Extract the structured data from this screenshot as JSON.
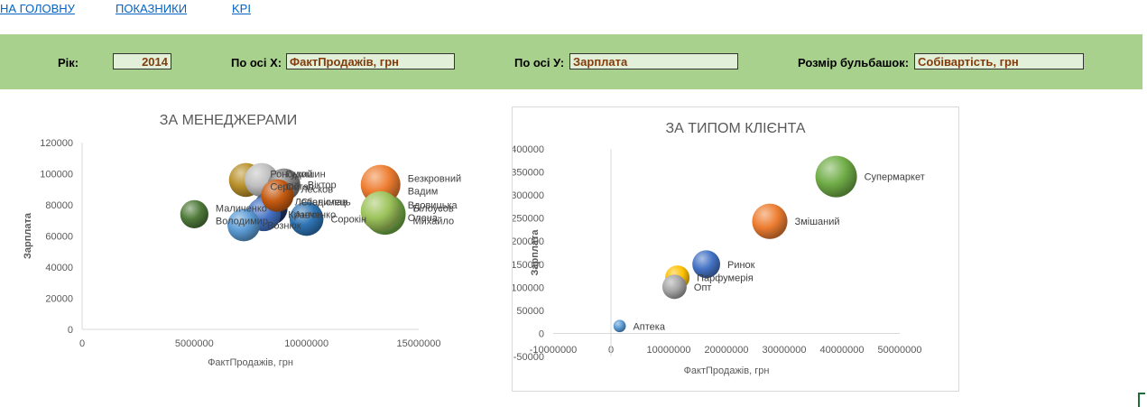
{
  "nav": {
    "home": "НА ГОЛОВНУ",
    "indicators": "ПОКАЗНИКИ",
    "kpi": "KPI"
  },
  "filters": {
    "year_label": "Рік:",
    "year_value": "2014",
    "x_label": "По осі Х:",
    "x_value": "ФактПродажів, грн",
    "y_label": "По осі У:",
    "y_value": "Зарплата",
    "size_label": "Розмір бульбашок:",
    "size_value": "Собівартість, грн"
  },
  "colors": {
    "band": "#a9d18e",
    "link": "#0563c1",
    "value_text": "#843c0c"
  },
  "chart_data": [
    {
      "type": "bubble",
      "title": "ЗА МЕНЕДЖЕРАМИ",
      "xlabel": "ФактПродажів, грн",
      "ylabel": "Зарплата",
      "xlim": [
        0,
        15000000
      ],
      "ylim": [
        0,
        120000
      ],
      "xticks": [
        "0",
        "5000000",
        "10000000",
        "15000000"
      ],
      "yticks": [
        "0",
        "20000",
        "40000",
        "60000",
        "80000",
        "100000",
        "120000"
      ],
      "grid": false,
      "points": [
        {
          "label": "Маличенко Володимир",
          "x": 5000000,
          "y": 74000,
          "size": 0.35,
          "color": "#4f7a3a"
        },
        {
          "label": "Ронський Сергій",
          "x": 7300000,
          "y": 96000,
          "size": 0.55,
          "color": "#b8902a"
        },
        {
          "label": "Гудошин Остап",
          "x": 8000000,
          "y": 96000,
          "size": 0.55,
          "color": "#bfbfbf"
        },
        {
          "label": "Віктор",
          "x": 9000000,
          "y": 93000,
          "size": 0.5,
          "color": "#7f7f7f"
        },
        {
          "label": "Лесков Станіслав",
          "x": 8700000,
          "y": 86000,
          "size": 0.5,
          "color": "#c55a11"
        },
        {
          "label": "Лебединець Антон",
          "x": 8400000,
          "y": 78000,
          "size": 0.55,
          "color": "#1f3864"
        },
        {
          "label": "Кравченко",
          "x": 8100000,
          "y": 74000,
          "size": 0.55,
          "color": "#4472c4"
        },
        {
          "label": "Вознюк",
          "x": 7200000,
          "y": 67000,
          "size": 0.5,
          "color": "#5b9bd5"
        },
        {
          "label": "Сорокін",
          "x": 10000000,
          "y": 71000,
          "size": 0.55,
          "color": "#2e75b6"
        },
        {
          "label": "Безкровний Вадим",
          "x": 13300000,
          "y": 93000,
          "size": 0.75,
          "color": "#ed7d31"
        },
        {
          "label": "Вдовицька Олена",
          "x": 13300000,
          "y": 76000,
          "size": 0.75,
          "color": "#9dc35b"
        },
        {
          "label": "Білоусов Михайло",
          "x": 13500000,
          "y": 74000,
          "size": 0.8,
          "color": "#70ad47"
        }
      ]
    },
    {
      "type": "bubble",
      "title": "ЗА ТИПОМ КЛІЄНТА",
      "xlabel": "ФактПродажів, грн",
      "ylabel": "Зарплата",
      "xlim": [
        -10000000,
        50000000
      ],
      "ylim": [
        -50000,
        400000
      ],
      "xticks": [
        "-10000000",
        "0",
        "10000000",
        "20000000",
        "30000000",
        "40000000",
        "50000000"
      ],
      "yticks": [
        "-50000",
        "0",
        "50000",
        "100000",
        "150000",
        "200000",
        "250000",
        "300000",
        "350000",
        "400000"
      ],
      "grid": false,
      "points": [
        {
          "label": "Супермаркет",
          "x": 39000000,
          "y": 340000,
          "size": 1.0,
          "color": "#70ad47"
        },
        {
          "label": "Змішаний",
          "x": 27500000,
          "y": 243000,
          "size": 0.82,
          "color": "#ed7d31"
        },
        {
          "label": "Ринок",
          "x": 16500000,
          "y": 150000,
          "size": 0.6,
          "color": "#4472c4"
        },
        {
          "label": "Парфумерія",
          "x": 11500000,
          "y": 121000,
          "size": 0.5,
          "color": "#ffc000"
        },
        {
          "label": "Опт",
          "x": 11000000,
          "y": 101000,
          "size": 0.5,
          "color": "#a5a5a5"
        },
        {
          "label": "Аптека",
          "x": 1500000,
          "y": 16000,
          "size": 0.15,
          "color": "#5b9bd5"
        }
      ]
    }
  ]
}
